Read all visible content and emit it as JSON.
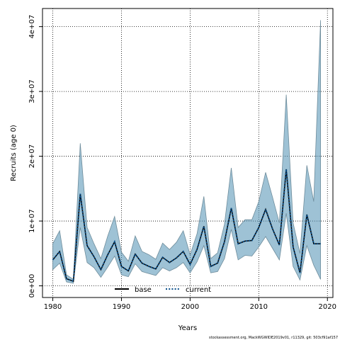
{
  "chart_data": {
    "type": "line",
    "xlabel": "Years",
    "ylabel": "Recruits (age 0)",
    "xlim": [
      1978.5,
      2020.8
    ],
    "ylim": [
      -1800000,
      42800000
    ],
    "xticks": [
      1980,
      1990,
      2000,
      2010,
      2020
    ],
    "yticks": [
      0,
      10000000,
      20000000,
      30000000,
      40000000
    ],
    "ytick_labels": [
      "0e+00",
      "1e+07",
      "2e+07",
      "3e+07",
      "4e+07"
    ],
    "grid": true,
    "legend_position": "bottom",
    "x": [
      1980,
      1981,
      1982,
      1983,
      1984,
      1985,
      1986,
      1987,
      1988,
      1989,
      1990,
      1991,
      1992,
      1993,
      1994,
      1995,
      1996,
      1997,
      1998,
      1999,
      2000,
      2001,
      2002,
      2003,
      2004,
      2005,
      2006,
      2007,
      2008,
      2009,
      2010,
      2011,
      2012,
      2013,
      2014,
      2015,
      2016,
      2017,
      2018,
      2019
    ],
    "series": [
      {
        "name": "base",
        "style": "solid",
        "color": "#000000",
        "values": [
          4000000,
          5300000,
          1100000,
          700000,
          14200000,
          6200000,
          4500000,
          2500000,
          4800000,
          6800000,
          3000000,
          2300000,
          4900000,
          3500000,
          3000000,
          2600000,
          4400000,
          3600000,
          4300000,
          5300000,
          3300000,
          5600000,
          9200000,
          3000000,
          3500000,
          6800000,
          12000000,
          6500000,
          6900000,
          7000000,
          9000000,
          11800000,
          8800000,
          6300000,
          18000000,
          6000000,
          2000000,
          11000000,
          6500000,
          6500000
        ]
      },
      {
        "name": "current",
        "style": "dotted",
        "color": "#0a4f8a",
        "values": [
          4000000,
          5300000,
          1100000,
          700000,
          14200000,
          6200000,
          4500000,
          2500000,
          4800000,
          6800000,
          3000000,
          2300000,
          4900000,
          3500000,
          3000000,
          2600000,
          4400000,
          3600000,
          4300000,
          5300000,
          3300000,
          5600000,
          9200000,
          3000000,
          3500000,
          6800000,
          12000000,
          6500000,
          6900000,
          7000000,
          9000000,
          11800000,
          8800000,
          6300000,
          18000000,
          6000000,
          2000000,
          11000000,
          6500000,
          6500000
        ]
      }
    ],
    "band": {
      "color": "#4f90b3",
      "upper": [
        6500000,
        8500000,
        1700000,
        1000000,
        22000000,
        9000000,
        6500000,
        4200000,
        7700000,
        10700000,
        5200000,
        3800000,
        7700000,
        5300000,
        4800000,
        4100000,
        6600000,
        5600000,
        6700000,
        8500000,
        4800000,
        8000000,
        13800000,
        4200000,
        5100000,
        9500000,
        18200000,
        9000000,
        10200000,
        10200000,
        13000000,
        17500000,
        13700000,
        9700000,
        29500000,
        9700000,
        5000000,
        18600000,
        13000000,
        41000000
      ],
      "lower": [
        2500000,
        3500000,
        600000,
        400000,
        9000000,
        3600000,
        2800000,
        1300000,
        2900000,
        4600000,
        1700000,
        1400000,
        3400000,
        2200000,
        1900000,
        1600000,
        2800000,
        2300000,
        2800000,
        3600000,
        2000000,
        3700000,
        6200000,
        2000000,
        2200000,
        4200000,
        8700000,
        4000000,
        4700000,
        4600000,
        6000000,
        7600000,
        5800000,
        4000000,
        11200000,
        3000000,
        900000,
        6200000,
        3200000,
        1000000
      ]
    }
  },
  "footer": "stockassessment.org, MackWGWIDE2019v01, r11329, git: 503cf91af157"
}
